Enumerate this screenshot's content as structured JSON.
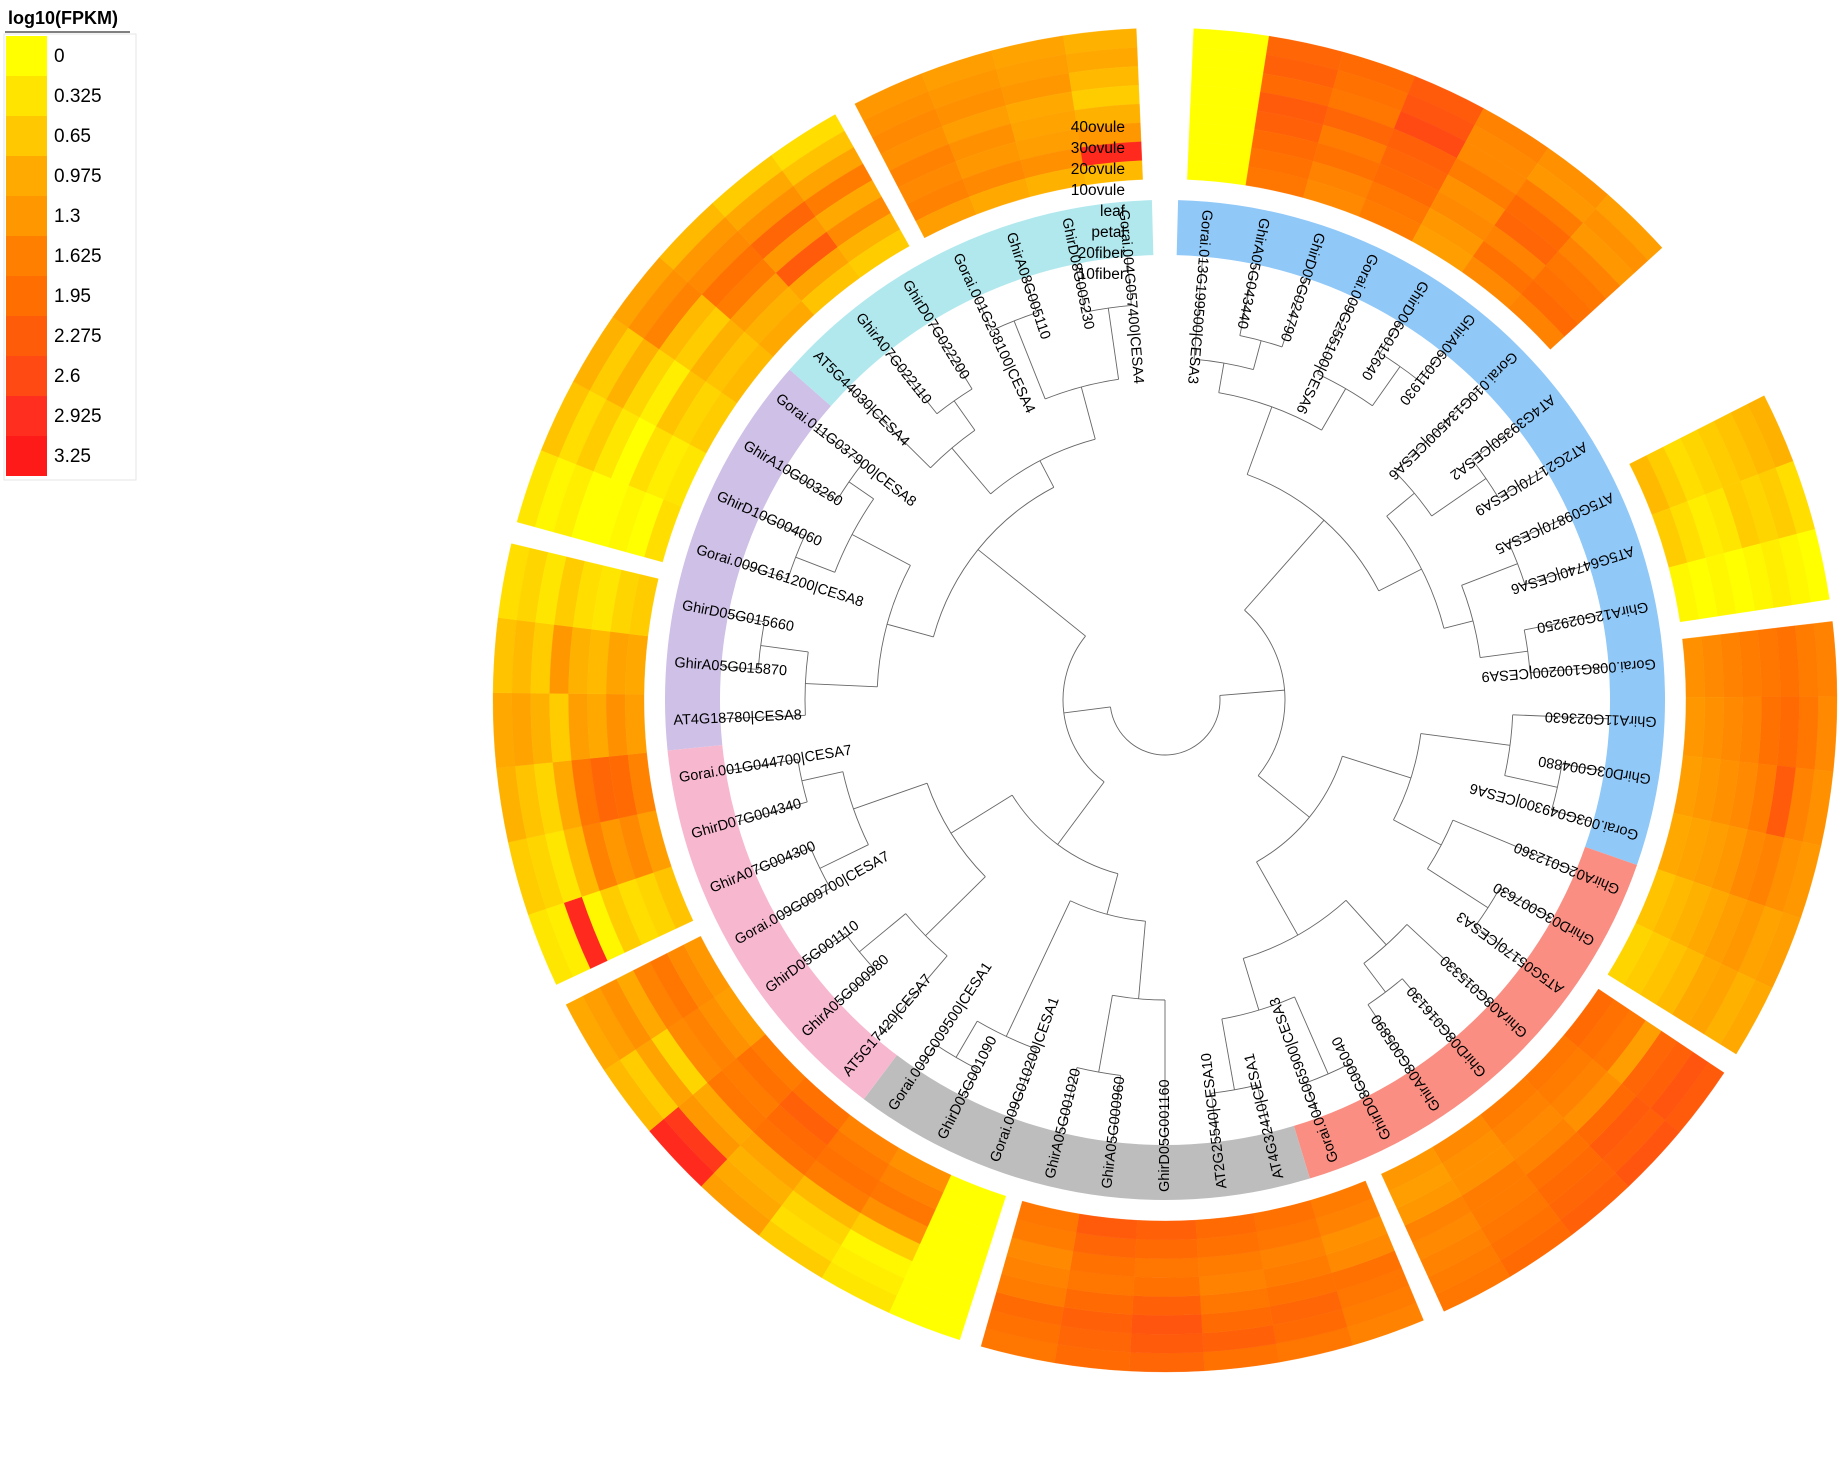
{
  "chart_data": {
    "type": "heatmap",
    "title": "",
    "legend": {
      "title": "log10(FPKM)",
      "ticks": [
        "0",
        "0.325",
        "0.65",
        "0.975",
        "1.3",
        "1.625",
        "1.95",
        "2.275",
        "2.6",
        "2.925",
        "3.25"
      ],
      "value_range": [
        0,
        3.25
      ],
      "colors": [
        "#ffff00",
        "#ffe400",
        "#ffc800",
        "#ffaa00",
        "#ff9800",
        "#ff8000",
        "#ff6e00",
        "#ff5c0a",
        "#ff4a14",
        "#ff2e1e",
        "#ff1a1a"
      ],
      "position": "top-left"
    },
    "tracks": [
      "40ovule",
      "30ovule",
      "20ovule",
      "10ovule",
      "leaf",
      "petal",
      "20fiber",
      "10fiber"
    ],
    "groups": [
      {
        "color": "#90c8f8",
        "genes": [
          "Gorai.013G199500|CESA3",
          "GhirA05G043440",
          "GhirD05G024790",
          "Gorai.009G255100|CESA6",
          "GhirD06G012640",
          "GhirA06G011930",
          "Gorai.010G134500|CESA6",
          "AT4G39350|CESA2",
          "AT2G21770|CESA9",
          "AT5G09870|CESA5",
          "AT5G64740|CESA6",
          "GhirA12G029250",
          "Gorai.008G100200|CESA9",
          "GhirA11G023630",
          "GhirD03G004880",
          "Gorai.003G049300|CESA6"
        ]
      },
      {
        "color": "#fa8e82",
        "genes": [
          "GhirA02G012360",
          "GhirD03G007630",
          "AT5G05170|CESA3",
          "GhirA08G015330",
          "GhirD08G016130",
          "GhirA08G005890",
          "GhirD08G006040",
          "Gorai.004G065900|CESA3"
        ]
      },
      {
        "color": "#bdbdbd",
        "genes": [
          "AT4G32410|CESA1",
          "AT2G25540|CESA10",
          "GhirD05G001160",
          "GhirA05G000960",
          "GhirA05G001020",
          "Gorai.009G010200|CESA1",
          "GhirD05G001090",
          "Gorai.009G009500|CESA1"
        ]
      },
      {
        "color": "#f7b8cf",
        "genes": [
          "AT5G17420|CESA7",
          "GhirA05G000980",
          "GhirD05G001110",
          "Gorai.009G009700|CESA7",
          "GhirA07G004300",
          "GhirD07G004340",
          "Gorai.001G044700|CESA7"
        ]
      },
      {
        "color": "#cec0e6",
        "genes": [
          "AT4G18780|CESA8",
          "GhirA05G015870",
          "GhirD05G015660",
          "Gorai.009G161200|CESA8",
          "GhirD10G004060",
          "GhirA10G003260",
          "Gorai.011G037900|CESA8"
        ]
      },
      {
        "color": "#b0e8ee",
        "genes": [
          "AT5G44030|CESA4",
          "GhirA07G022110",
          "GhirD07G022200",
          "Gorai.001G238100|CESA4",
          "GhirA08G005110",
          "GhirD08G005230",
          "Gorai.004G057400|CESA4"
        ]
      }
    ],
    "heatmap_blocks": [
      {
        "genes": [
          "Gorai.013G199500|CESA3",
          "GhirA05G043440",
          "GhirD05G024790",
          "Gorai.009G255100|CESA6",
          "GhirD06G012640",
          "GhirA06G011930",
          "Gorai.010G134500|CESA6"
        ],
        "values": [
          [
            0,
            2.1,
            2.0,
            2.3,
            1.6,
            1.4,
            1.2
          ],
          [
            0,
            2.2,
            1.9,
            2.4,
            1.5,
            1.3,
            1.4
          ],
          [
            0,
            2.0,
            1.8,
            2.6,
            1.5,
            1.7,
            1.3
          ],
          [
            0,
            2.3,
            2.1,
            2.2,
            1.7,
            2.0,
            1.6
          ],
          [
            0,
            2.2,
            1.7,
            2.1,
            1.4,
            2.1,
            1.8
          ],
          [
            0,
            2.0,
            1.9,
            2.0,
            1.5,
            1.6,
            1.9
          ],
          [
            0,
            1.9,
            1.6,
            1.8,
            1.3,
            1.9,
            2.0
          ],
          [
            0,
            1.8,
            1.5,
            1.7,
            1.2,
            1.5,
            1.6
          ]
        ]
      },
      {
        "genes": [
          "AT5G09870|CESA5",
          "AT5G64740|CESA6",
          "GhirA12G029250"
        ],
        "values": [
          [
            0.9,
            0.4,
            0.0
          ],
          [
            0.8,
            0.6,
            0.1
          ],
          [
            0.7,
            0.5,
            0.2
          ],
          [
            0.6,
            0.6,
            0.1
          ],
          [
            0.5,
            0.3,
            0.0
          ],
          [
            0.4,
            0.2,
            0.1
          ],
          [
            0.6,
            0.4,
            0.0
          ],
          [
            0.8,
            0.6,
            0.1
          ]
        ]
      },
      {
        "genes": [
          "Gorai.008G100200|CESA9",
          "GhirA11G023630",
          "GhirD03G004880",
          "Gorai.003G049300|CESA6",
          "GhirA02G012360",
          "GhirD03G007630"
        ],
        "values": [
          [
            1.6,
            1.5,
            1.4,
            1.3,
            1.2,
            1.0
          ],
          [
            1.7,
            1.8,
            1.6,
            1.4,
            1.1,
            0.9
          ],
          [
            1.9,
            2.0,
            2.3,
            1.6,
            1.3,
            1.1
          ],
          [
            1.8,
            1.9,
            1.7,
            1.5,
            1.2,
            1.0
          ],
          [
            1.7,
            1.6,
            1.5,
            1.3,
            1.0,
            0.8
          ],
          [
            1.6,
            1.5,
            1.4,
            1.2,
            0.9,
            0.7
          ],
          [
            1.5,
            1.4,
            1.3,
            1.1,
            0.8,
            0.6
          ],
          [
            1.4,
            1.3,
            1.2,
            1.0,
            0.7,
            0.5
          ]
        ]
      },
      {
        "genes": [
          "AT5G05170|CESA3",
          "GhirA08G015330",
          "GhirD08G016130",
          "GhirA08G005890",
          "GhirD08G006040"
        ],
        "values": [
          [
            2.3,
            2.4,
            2.2,
            2.0,
            1.8
          ],
          [
            2.4,
            2.2,
            2.1,
            1.9,
            1.7
          ],
          [
            2.2,
            2.3,
            2.0,
            1.8,
            1.6
          ],
          [
            2.1,
            2.0,
            1.9,
            1.7,
            1.5
          ],
          [
            1.2,
            1.4,
            1.6,
            1.7,
            1.6
          ],
          [
            1.8,
            1.6,
            1.5,
            1.4,
            1.3
          ],
          [
            1.9,
            1.7,
            1.6,
            1.4,
            1.2
          ],
          [
            2.0,
            1.8,
            1.7,
            1.5,
            1.3
          ]
        ]
      },
      {
        "genes": [
          "Gorai.004G065900|CESA3",
          "AT4G32410|CESA1",
          "AT2G25540|CESA10",
          "GhirD05G001160",
          "GhirA05G000960",
          "GhirA05G001020"
        ],
        "values": [
          [
            1.6,
            1.8,
            1.9,
            2.1,
            2.0,
            1.8
          ],
          [
            1.7,
            2.0,
            2.2,
            2.3,
            2.1,
            1.9
          ],
          [
            1.8,
            2.1,
            2.0,
            2.4,
            2.2,
            2.0
          ],
          [
            1.9,
            1.9,
            1.8,
            2.2,
            2.0,
            1.7
          ],
          [
            1.5,
            1.7,
            1.6,
            1.9,
            1.8,
            1.6
          ],
          [
            1.4,
            1.6,
            1.7,
            1.8,
            1.9,
            1.5
          ],
          [
            1.6,
            1.8,
            1.9,
            2.0,
            2.1,
            1.7
          ],
          [
            1.7,
            1.9,
            2.0,
            2.2,
            2.3,
            1.8
          ]
        ]
      },
      {
        "genes": [
          "Gorai.009G010200|CESA1",
          "GhirD05G001090",
          "Gorai.009G009500|CESA1",
          "AT5G17420|CESA7",
          "GhirA05G000980",
          "GhirD05G001110",
          "Gorai.009G009700|CESA7"
        ],
        "values": [
          [
            0,
            0.3,
            0.6,
            1.2,
            3.0,
            0.8,
            1.0
          ],
          [
            0,
            0.2,
            0.4,
            1.0,
            2.8,
            0.6,
            1.2
          ],
          [
            0,
            0.1,
            0.5,
            0.9,
            1.3,
            1.1,
            1.4
          ],
          [
            0,
            0.6,
            0.8,
            1.1,
            1.0,
            0.5,
            1.0
          ],
          [
            0,
            1.4,
            1.7,
            1.9,
            1.8,
            1.5,
            1.6
          ],
          [
            0,
            1.8,
            1.9,
            2.0,
            1.7,
            1.6,
            1.8
          ],
          [
            0,
            1.6,
            1.8,
            2.2,
            1.9,
            1.4,
            1.5
          ],
          [
            0,
            1.4,
            1.6,
            1.9,
            1.7,
            1.2,
            1.3
          ]
        ]
      },
      {
        "genes": [
          "GhirA07G004300",
          "GhirD07G004340",
          "Gorai.001G044700|CESA7",
          "AT4G18780|CESA8",
          "GhirA05G015870",
          "GhirD05G015660"
        ],
        "values": [
          [
            0.3,
            0.6,
            0.9,
            1.0,
            0.7,
            0.4
          ],
          [
            0.2,
            0.5,
            0.7,
            1.1,
            0.8,
            0.5
          ],
          [
            3.0,
            0.3,
            0.5,
            0.9,
            0.6,
            0.3
          ],
          [
            0.1,
            0.8,
            1.0,
            0.6,
            1.3,
            0.6
          ],
          [
            0.6,
            1.6,
            1.8,
            1.2,
            0.9,
            0.4
          ],
          [
            0.4,
            1.3,
            2.1,
            1.0,
            0.8,
            0.3
          ],
          [
            0.5,
            1.5,
            2.0,
            1.4,
            1.1,
            0.5
          ],
          [
            0.7,
            1.2,
            1.6,
            1.2,
            1.0,
            0.6
          ]
        ]
      },
      {
        "genes": [
          "Gorai.009G161200|CESA8",
          "GhirD10G004060",
          "GhirA10G003260",
          "Gorai.011G037900|CESA8",
          "AT5G44030|CESA4",
          "GhirA07G022110",
          "GhirD07G022200"
        ],
        "values": [
          [
            0.3,
            0.7,
            0.9,
            1.1,
            0.8,
            0.6,
            0.4
          ],
          [
            0.1,
            0.4,
            0.6,
            1.4,
            1.3,
            1.0,
            0.7
          ],
          [
            0.2,
            0.6,
            0.9,
            1.6,
            1.5,
            1.4,
            1.1
          ],
          [
            0,
            0.3,
            0.5,
            0.8,
            1.9,
            2.1,
            1.7
          ],
          [
            0,
            0,
            0.2,
            0.6,
            1.7,
            1.3,
            1.0
          ],
          [
            0.1,
            0.4,
            0.7,
            0.9,
            1.2,
            2.3,
            1.5
          ],
          [
            0,
            0.2,
            0.5,
            0.7,
            0.9,
            1.1,
            0.9
          ],
          [
            0.4,
            0.3,
            0.6,
            0.8,
            1.0,
            0.7,
            0.6
          ]
        ]
      },
      {
        "genes": [
          "Gorai.001G238100|CESA4",
          "GhirA08G005110",
          "GhirD08G005230",
          "Gorai.004G057400|CESA4"
        ],
        "values": [
          [
            1.3,
            1.2,
            1.1,
            0.9
          ],
          [
            1.4,
            1.3,
            1.2,
            1.0
          ],
          [
            1.5,
            1.4,
            1.3,
            0.8
          ],
          [
            1.4,
            1.2,
            1.0,
            0.6
          ],
          [
            1.6,
            1.4,
            1.1,
            0.9
          ],
          [
            1.5,
            1.3,
            1.2,
            1.3
          ],
          [
            1.6,
            1.5,
            1.4,
            3.0
          ],
          [
            1.2,
            1.0,
            0.9,
            0.8
          ]
        ]
      }
    ]
  }
}
